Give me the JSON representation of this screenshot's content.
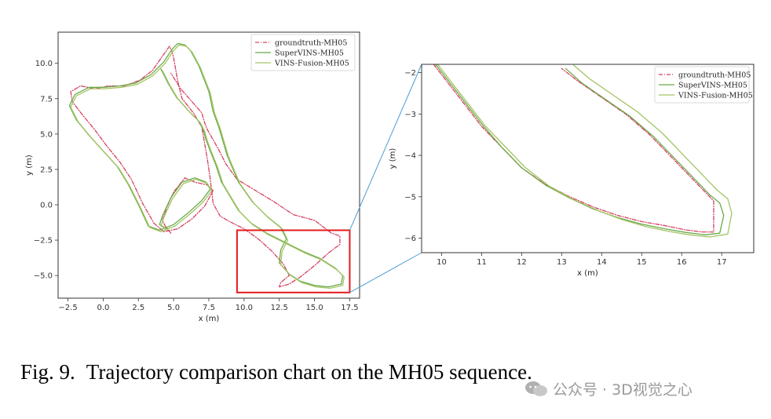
{
  "chart_data": [
    {
      "type": "line",
      "title": "",
      "xlabel": "x (m)",
      "ylabel": "y (m)",
      "xlim": [
        -3.2,
        18.2
      ],
      "ylim": [
        -6.6,
        12.2
      ],
      "xticks": [
        -2.5,
        0.0,
        2.5,
        5.0,
        7.5,
        10.0,
        12.5,
        15.0,
        17.5
      ],
      "yticks": [
        -5.0,
        -2.5,
        0.0,
        2.5,
        5.0,
        7.5,
        10.0
      ],
      "xtick_labels": [
        "−2.5",
        "0.0",
        "2.5",
        "5.0",
        "7.5",
        "10.0",
        "12.5",
        "15.0",
        "17.5"
      ],
      "ytick_labels": [
        "−5.0",
        "−2.5",
        "0.0",
        "2.5",
        "5.0",
        "7.5",
        "10.0"
      ],
      "legend_position": "top-right",
      "highlight_box": {
        "x_range": [
          9.5,
          17.5
        ],
        "y_range": [
          -6.2,
          -1.8
        ],
        "color": "#e41a1c"
      },
      "series": [
        {
          "name": "groundtruth-MH05",
          "color": "#d6405f",
          "style": "dashdot",
          "x": [
            4.8,
            4.4,
            4.2,
            4.5,
            5.0,
            5.8,
            6.5,
            7.4,
            7.8,
            7.2,
            6.3,
            5.3,
            4.3,
            3.6,
            2.8,
            2.0,
            1.2,
            0.3,
            -0.6,
            -1.5,
            -2.2,
            -2.3,
            -1.6,
            -0.6,
            0.4,
            1.5,
            2.6,
            3.5,
            4.2,
            4.7,
            4.9,
            5.0,
            5.3,
            5.6,
            6.0,
            6.4,
            7.0,
            7.4,
            7.6,
            7.8,
            8.3,
            9.0,
            10.0,
            11.0,
            12.0,
            12.8,
            13.2,
            12.6,
            12.5,
            13.2,
            14.0,
            15.0,
            16.0,
            16.8,
            16.8,
            16.2,
            15.0,
            13.5,
            12.0,
            10.5,
            9.5,
            8.7,
            8.2,
            7.8,
            7.4,
            7.2,
            7.0,
            6.2,
            5.5,
            4.8
          ],
          "y": [
            -2.0,
            -1.5,
            -1.1,
            -0.2,
            0.9,
            1.9,
            1.6,
            1.4,
            1.0,
            -0.1,
            -1.0,
            -1.7,
            -1.9,
            -1.3,
            0.1,
            1.8,
            3.0,
            4.1,
            5.3,
            6.4,
            7.3,
            8.0,
            8.4,
            8.2,
            8.4,
            8.4,
            8.8,
            9.5,
            10.5,
            11.2,
            10.8,
            10.4,
            8.7,
            7.5,
            7.0,
            6.5,
            5.5,
            3.2,
            1.8,
            0.1,
            -0.8,
            -1.2,
            -1.7,
            -2.4,
            -3.3,
            -4.2,
            -5.0,
            -5.5,
            -5.8,
            -5.6,
            -5.1,
            -4.3,
            -3.4,
            -2.8,
            -2.2,
            -2.0,
            -1.1,
            -0.7,
            0.3,
            1.2,
            1.8,
            2.9,
            3.9,
            4.6,
            5.3,
            5.8,
            6.5,
            7.4,
            8.2,
            9.3
          ]
        },
        {
          "name": "SuperVINS-MH05",
          "color": "#6aaa4a",
          "style": "solid",
          "x": [
            4.5,
            4.0,
            4.2,
            4.8,
            5.6,
            6.5,
            7.3,
            7.6,
            7.0,
            6.0,
            5.0,
            4.0,
            3.2,
            2.6,
            1.8,
            1.0,
            0.0,
            -1.0,
            -1.9,
            -2.4,
            -2.0,
            -1.0,
            0.0,
            1.2,
            2.3,
            3.4,
            4.3,
            4.9,
            5.3,
            5.8,
            6.2,
            6.8,
            7.5,
            7.8,
            8.2,
            8.8,
            9.6,
            10.6,
            11.6,
            12.6,
            13.0,
            12.6,
            12.5,
            13.2,
            14.0,
            15.0,
            16.0,
            16.9,
            17.0,
            16.5,
            15.4,
            14.2,
            13.0,
            11.6,
            10.5,
            9.6,
            9.0,
            8.4,
            8.0,
            7.6,
            7.3,
            7.1,
            6.8,
            6.0,
            5.2,
            4.6,
            4.1
          ],
          "y": [
            -1.7,
            -1.4,
            -0.8,
            0.5,
            1.6,
            1.9,
            1.6,
            1.1,
            0.3,
            -0.6,
            -1.4,
            -1.8,
            -1.5,
            -0.2,
            1.4,
            2.7,
            3.8,
            4.9,
            6.0,
            7.0,
            7.8,
            8.3,
            8.3,
            8.4,
            8.6,
            9.2,
            10.1,
            11.0,
            11.4,
            11.3,
            10.9,
            9.8,
            8.0,
            6.6,
            5.5,
            3.5,
            1.6,
            0.2,
            -0.8,
            -1.6,
            -2.4,
            -3.2,
            -4.1,
            -4.9,
            -5.4,
            -5.7,
            -5.8,
            -5.6,
            -5.0,
            -4.5,
            -3.8,
            -3.3,
            -2.7,
            -2.0,
            -1.3,
            -0.4,
            0.6,
            1.6,
            2.8,
            3.8,
            4.6,
            5.3,
            5.9,
            6.7,
            7.6,
            8.6,
            9.6
          ]
        },
        {
          "name": "VINS-Fusion-MH05",
          "color": "#a3c463",
          "style": "solid",
          "x": [
            4.6,
            4.1,
            4.3,
            4.9,
            5.7,
            6.6,
            7.4,
            7.7,
            7.1,
            6.1,
            5.1,
            4.1,
            3.3,
            2.7,
            1.9,
            1.1,
            0.1,
            -0.9,
            -1.8,
            -2.3,
            -1.9,
            -0.9,
            0.1,
            1.3,
            2.4,
            3.5,
            4.4,
            5.0,
            5.4,
            5.9,
            6.3,
            6.9,
            7.6,
            7.9,
            8.3,
            8.9,
            9.7,
            10.7,
            11.7,
            12.7,
            13.1,
            12.7,
            12.6,
            13.3,
            14.1,
            15.1,
            16.1,
            17.0,
            17.1,
            16.6,
            15.5,
            14.3,
            13.1,
            11.7,
            10.6,
            9.7,
            9.1,
            8.5,
            8.1,
            7.7,
            7.4,
            7.2,
            6.9,
            6.1,
            5.3,
            4.7,
            4.2
          ],
          "y": [
            -1.8,
            -1.5,
            -0.9,
            0.4,
            1.5,
            1.8,
            1.5,
            1.0,
            0.2,
            -0.7,
            -1.5,
            -1.9,
            -1.6,
            -0.3,
            1.3,
            2.6,
            3.7,
            4.8,
            5.9,
            6.9,
            7.7,
            8.2,
            8.2,
            8.3,
            8.5,
            9.1,
            10.0,
            10.9,
            11.3,
            11.2,
            10.8,
            9.7,
            7.9,
            6.5,
            5.4,
            3.4,
            1.5,
            0.1,
            -0.9,
            -1.7,
            -2.5,
            -3.3,
            -4.2,
            -5.0,
            -5.5,
            -5.8,
            -5.9,
            -5.7,
            -5.1,
            -4.6,
            -3.9,
            -3.4,
            -2.8,
            -2.1,
            -1.4,
            -0.5,
            0.5,
            1.5,
            2.7,
            3.7,
            4.5,
            5.2,
            5.8,
            6.6,
            7.5,
            8.5,
            9.5
          ]
        }
      ]
    },
    {
      "type": "line",
      "title": "",
      "xlabel": "x (m)",
      "ylabel": "y (m)",
      "xlim": [
        9.5,
        17.8
      ],
      "ylim": [
        -6.35,
        -1.8
      ],
      "xticks": [
        10,
        11,
        12,
        13,
        14,
        15,
        16,
        17
      ],
      "yticks": [
        -6,
        -5,
        -4,
        -3,
        -2
      ],
      "xtick_labels": [
        "10",
        "11",
        "12",
        "13",
        "14",
        "15",
        "16",
        "17"
      ],
      "ytick_labels": [
        "−6",
        "−5",
        "−4",
        "−3",
        "−2"
      ],
      "legend_position": "top-right",
      "series": [
        {
          "name": "groundtruth-MH05",
          "color": "#d6405f",
          "style": "dashdot",
          "x": [
            9.8,
            10.2,
            10.6,
            11.0,
            11.5,
            12.0,
            12.6,
            13.2,
            13.8,
            14.4,
            15.0,
            15.6,
            16.1,
            16.5,
            16.8,
            16.8,
            16.8,
            16.6,
            16.2,
            15.7,
            15.2,
            14.6,
            14.0,
            13.4,
            13.0
          ],
          "y": [
            -1.8,
            -2.3,
            -2.8,
            -3.3,
            -3.8,
            -4.3,
            -4.7,
            -5.0,
            -5.25,
            -5.45,
            -5.6,
            -5.7,
            -5.8,
            -5.85,
            -5.85,
            -5.4,
            -5.1,
            -4.9,
            -4.5,
            -4.0,
            -3.5,
            -3.0,
            -2.6,
            -2.2,
            -1.9
          ]
        },
        {
          "name": "SuperVINS-MH05",
          "color": "#6aaa4a",
          "style": "solid",
          "x": [
            9.85,
            10.25,
            10.65,
            11.05,
            11.5,
            12.0,
            12.6,
            13.2,
            13.8,
            14.4,
            15.0,
            15.6,
            16.1,
            16.6,
            16.95,
            17.05,
            16.95,
            16.7,
            16.3,
            15.8,
            15.3,
            14.7,
            14.1,
            13.5,
            13.1
          ],
          "y": [
            -1.8,
            -2.3,
            -2.8,
            -3.3,
            -3.8,
            -4.3,
            -4.72,
            -5.03,
            -5.3,
            -5.5,
            -5.66,
            -5.78,
            -5.86,
            -5.92,
            -5.88,
            -5.45,
            -5.15,
            -4.95,
            -4.55,
            -4.05,
            -3.55,
            -3.05,
            -2.65,
            -2.25,
            -1.9
          ]
        },
        {
          "name": "VINS-Fusion-MH05",
          "color": "#a3c463",
          "style": "solid",
          "x": [
            9.9,
            10.3,
            10.7,
            11.1,
            11.6,
            12.1,
            12.7,
            13.3,
            13.9,
            14.5,
            15.1,
            15.7,
            16.2,
            16.7,
            17.15,
            17.25,
            17.15,
            16.9,
            16.5,
            16.0,
            15.5,
            14.9,
            14.3,
            13.7,
            13.3
          ],
          "y": [
            -1.8,
            -2.3,
            -2.8,
            -3.3,
            -3.8,
            -4.3,
            -4.75,
            -5.07,
            -5.33,
            -5.55,
            -5.72,
            -5.84,
            -5.92,
            -5.97,
            -5.9,
            -5.4,
            -5.05,
            -4.85,
            -4.45,
            -3.95,
            -3.45,
            -2.95,
            -2.55,
            -2.15,
            -1.82
          ]
        }
      ]
    }
  ],
  "caption": {
    "number": "Fig. 9.",
    "text": "Trajectory comparison chart on the MH05 sequence."
  },
  "watermark": "公众号 · 3D视觉之心"
}
